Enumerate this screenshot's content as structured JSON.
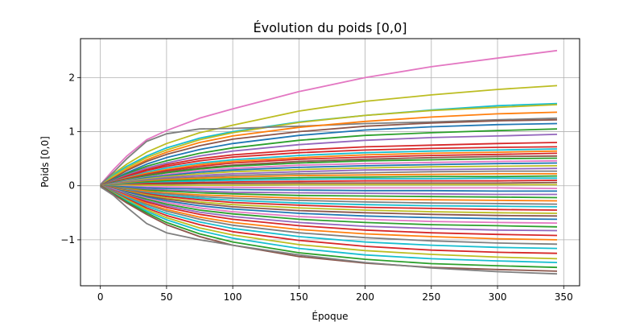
{
  "chart_data": {
    "type": "line",
    "title": "Évolution du poids [0,0]",
    "xlabel": "Époque",
    "ylabel": "Poids [0,0]",
    "xlim": [
      -15,
      362
    ],
    "ylim": [
      -1.85,
      2.72
    ],
    "x_ticks": [
      0,
      50,
      100,
      150,
      200,
      250,
      300,
      350
    ],
    "x_tick_labels": [
      "0",
      "50",
      "100",
      "150",
      "200",
      "250",
      "300",
      "350"
    ],
    "y_ticks": [
      -1,
      0,
      1,
      2
    ],
    "y_tick_labels": [
      "−1",
      "0",
      "1",
      "2"
    ],
    "grid": true,
    "legend": "none",
    "x": [
      0,
      10,
      20,
      35,
      50,
      75,
      100,
      150,
      200,
      250,
      300,
      345
    ],
    "series": [
      {
        "color": "#e377c2",
        "values": [
          0.02,
          0.3,
          0.55,
          0.85,
          1.02,
          1.25,
          1.42,
          1.74,
          2.0,
          2.2,
          2.36,
          2.5
        ]
      },
      {
        "color": "#bcbd22",
        "values": [
          0.01,
          0.22,
          0.4,
          0.62,
          0.78,
          0.98,
          1.12,
          1.38,
          1.56,
          1.68,
          1.78,
          1.85
        ]
      },
      {
        "color": "#17becf",
        "values": [
          0.0,
          0.2,
          0.36,
          0.55,
          0.7,
          0.88,
          1.0,
          1.18,
          1.3,
          1.4,
          1.48,
          1.52
        ]
      },
      {
        "color": "#bcbd22",
        "values": [
          0.0,
          0.18,
          0.33,
          0.52,
          0.66,
          0.85,
          0.98,
          1.17,
          1.3,
          1.39,
          1.45,
          1.5
        ]
      },
      {
        "color": "#7f7f7f",
        "values": [
          0.02,
          0.25,
          0.5,
          0.82,
          0.96,
          1.05,
          1.06,
          1.1,
          1.15,
          1.18,
          1.22,
          1.25
        ]
      },
      {
        "color": "#ff7f0e",
        "values": [
          0.0,
          0.15,
          0.3,
          0.48,
          0.62,
          0.8,
          0.92,
          1.08,
          1.19,
          1.27,
          1.33,
          1.36
        ]
      },
      {
        "color": "#8c564b",
        "values": [
          0.0,
          0.14,
          0.28,
          0.45,
          0.58,
          0.74,
          0.86,
          1.0,
          1.1,
          1.16,
          1.2,
          1.22
        ]
      },
      {
        "color": "#1f77b4",
        "values": [
          0.0,
          0.12,
          0.24,
          0.4,
          0.52,
          0.67,
          0.78,
          0.93,
          1.03,
          1.09,
          1.13,
          1.15
        ]
      },
      {
        "color": "#2ca02c",
        "values": [
          0.0,
          0.11,
          0.22,
          0.36,
          0.46,
          0.6,
          0.7,
          0.84,
          0.93,
          0.98,
          1.02,
          1.05
        ]
      },
      {
        "color": "#9467bd",
        "values": [
          0.0,
          0.1,
          0.2,
          0.33,
          0.42,
          0.55,
          0.64,
          0.76,
          0.84,
          0.89,
          0.92,
          0.95
        ]
      },
      {
        "color": "#d62728",
        "values": [
          0.0,
          0.09,
          0.18,
          0.3,
          0.39,
          0.5,
          0.57,
          0.66,
          0.72,
          0.75,
          0.78,
          0.8
        ]
      },
      {
        "color": "#d62728",
        "values": [
          0.0,
          0.08,
          0.16,
          0.28,
          0.36,
          0.46,
          0.53,
          0.61,
          0.66,
          0.69,
          0.71,
          0.72
        ]
      },
      {
        "color": "#17becf",
        "values": [
          0.0,
          0.08,
          0.15,
          0.25,
          0.33,
          0.42,
          0.48,
          0.56,
          0.61,
          0.64,
          0.66,
          0.68
        ]
      },
      {
        "color": "#ff7f0e",
        "values": [
          0.0,
          0.07,
          0.14,
          0.23,
          0.3,
          0.39,
          0.45,
          0.52,
          0.57,
          0.6,
          0.62,
          0.64
        ]
      },
      {
        "color": "#d62728",
        "values": [
          0.0,
          0.07,
          0.13,
          0.21,
          0.28,
          0.36,
          0.42,
          0.49,
          0.53,
          0.56,
          0.58,
          0.6
        ]
      },
      {
        "color": "#8c564b",
        "values": [
          0.0,
          0.06,
          0.12,
          0.2,
          0.26,
          0.33,
          0.38,
          0.45,
          0.49,
          0.52,
          0.54,
          0.55
        ]
      },
      {
        "color": "#2ca02c",
        "values": [
          0.0,
          0.06,
          0.11,
          0.18,
          0.24,
          0.31,
          0.36,
          0.42,
          0.46,
          0.48,
          0.5,
          0.51
        ]
      },
      {
        "color": "#e377c2",
        "values": [
          0.0,
          0.05,
          0.1,
          0.16,
          0.21,
          0.28,
          0.32,
          0.38,
          0.41,
          0.43,
          0.45,
          0.46
        ]
      },
      {
        "color": "#1f77b4",
        "values": [
          0.0,
          0.05,
          0.09,
          0.15,
          0.19,
          0.25,
          0.29,
          0.34,
          0.37,
          0.39,
          0.41,
          0.42
        ]
      },
      {
        "color": "#bcbd22",
        "values": [
          0.0,
          0.04,
          0.08,
          0.13,
          0.17,
          0.22,
          0.26,
          0.3,
          0.33,
          0.35,
          0.36,
          0.37
        ]
      },
      {
        "color": "#9467bd",
        "values": [
          0.0,
          0.04,
          0.07,
          0.11,
          0.15,
          0.19,
          0.22,
          0.26,
          0.29,
          0.3,
          0.31,
          0.32
        ]
      },
      {
        "color": "#7f7f7f",
        "values": [
          0.0,
          0.03,
          0.06,
          0.1,
          0.13,
          0.16,
          0.19,
          0.22,
          0.24,
          0.26,
          0.27,
          0.27
        ]
      },
      {
        "color": "#ff7f0e",
        "values": [
          0.0,
          0.03,
          0.05,
          0.08,
          0.11,
          0.14,
          0.16,
          0.19,
          0.2,
          0.21,
          0.22,
          0.22
        ]
      },
      {
        "color": "#2ca02c",
        "values": [
          0.0,
          0.02,
          0.04,
          0.07,
          0.09,
          0.11,
          0.13,
          0.15,
          0.16,
          0.17,
          0.17,
          0.18
        ]
      },
      {
        "color": "#17becf",
        "values": [
          0.0,
          0.02,
          0.03,
          0.05,
          0.07,
          0.09,
          0.1,
          0.12,
          0.13,
          0.13,
          0.14,
          0.14
        ]
      },
      {
        "color": "#d62728",
        "values": [
          0.0,
          0.01,
          0.02,
          0.04,
          0.05,
          0.06,
          0.07,
          0.08,
          0.09,
          0.09,
          0.09,
          0.1
        ]
      },
      {
        "color": "#8c564b",
        "values": [
          0.0,
          0.01,
          0.01,
          0.02,
          0.03,
          0.04,
          0.04,
          0.05,
          0.05,
          0.05,
          0.05,
          0.06
        ]
      },
      {
        "color": "#bcbd22",
        "values": [
          0.0,
          0.0,
          0.01,
          0.01,
          0.01,
          0.01,
          0.01,
          0.02,
          0.02,
          0.02,
          0.02,
          0.02
        ]
      },
      {
        "color": "#e377c2",
        "values": [
          0.0,
          -0.01,
          -0.01,
          -0.02,
          -0.02,
          -0.03,
          -0.03,
          -0.04,
          -0.04,
          -0.04,
          -0.04,
          -0.05
        ]
      },
      {
        "color": "#1f77b4",
        "values": [
          0.0,
          -0.01,
          -0.02,
          -0.04,
          -0.05,
          -0.06,
          -0.07,
          -0.08,
          -0.09,
          -0.09,
          -0.1,
          -0.1
        ]
      },
      {
        "color": "#9467bd",
        "values": [
          0.0,
          -0.02,
          -0.04,
          -0.06,
          -0.08,
          -0.1,
          -0.12,
          -0.13,
          -0.14,
          -0.15,
          -0.16,
          -0.16
        ]
      },
      {
        "color": "#2ca02c",
        "values": [
          0.0,
          -0.02,
          -0.05,
          -0.08,
          -0.1,
          -0.13,
          -0.15,
          -0.18,
          -0.19,
          -0.2,
          -0.21,
          -0.22
        ]
      },
      {
        "color": "#ff7f0e",
        "values": [
          0.0,
          -0.03,
          -0.06,
          -0.1,
          -0.13,
          -0.17,
          -0.19,
          -0.23,
          -0.25,
          -0.26,
          -0.27,
          -0.28
        ]
      },
      {
        "color": "#7f7f7f",
        "values": [
          0.0,
          -0.03,
          -0.07,
          -0.12,
          -0.15,
          -0.2,
          -0.23,
          -0.27,
          -0.3,
          -0.32,
          -0.33,
          -0.34
        ]
      },
      {
        "color": "#17becf",
        "values": [
          0.0,
          -0.04,
          -0.08,
          -0.14,
          -0.18,
          -0.23,
          -0.27,
          -0.32,
          -0.35,
          -0.37,
          -0.38,
          -0.39
        ]
      },
      {
        "color": "#d62728",
        "values": [
          0.0,
          -0.04,
          -0.09,
          -0.15,
          -0.2,
          -0.26,
          -0.31,
          -0.36,
          -0.4,
          -0.42,
          -0.44,
          -0.45
        ]
      },
      {
        "color": "#bcbd22",
        "values": [
          0.0,
          -0.05,
          -0.1,
          -0.17,
          -0.23,
          -0.3,
          -0.35,
          -0.41,
          -0.45,
          -0.48,
          -0.5,
          -0.51
        ]
      },
      {
        "color": "#8c564b",
        "values": [
          0.0,
          -0.06,
          -0.11,
          -0.19,
          -0.25,
          -0.33,
          -0.39,
          -0.46,
          -0.5,
          -0.53,
          -0.55,
          -0.56
        ]
      },
      {
        "color": "#1f77b4",
        "values": [
          0.0,
          -0.06,
          -0.12,
          -0.21,
          -0.28,
          -0.37,
          -0.43,
          -0.51,
          -0.56,
          -0.59,
          -0.61,
          -0.62
        ]
      },
      {
        "color": "#e377c2",
        "values": [
          0.0,
          -0.07,
          -0.14,
          -0.23,
          -0.31,
          -0.41,
          -0.48,
          -0.57,
          -0.62,
          -0.66,
          -0.68,
          -0.69
        ]
      },
      {
        "color": "#2ca02c",
        "values": [
          0.0,
          -0.08,
          -0.15,
          -0.25,
          -0.34,
          -0.45,
          -0.52,
          -0.62,
          -0.68,
          -0.72,
          -0.74,
          -0.76
        ]
      },
      {
        "color": "#9467bd",
        "values": [
          0.0,
          -0.08,
          -0.16,
          -0.28,
          -0.37,
          -0.49,
          -0.57,
          -0.68,
          -0.75,
          -0.79,
          -0.82,
          -0.83
        ]
      },
      {
        "color": "#d62728",
        "values": [
          0.0,
          -0.09,
          -0.18,
          -0.3,
          -0.4,
          -0.53,
          -0.62,
          -0.74,
          -0.82,
          -0.87,
          -0.9,
          -0.92
        ]
      },
      {
        "color": "#ff7f0e",
        "values": [
          0.0,
          -0.1,
          -0.19,
          -0.33,
          -0.44,
          -0.58,
          -0.68,
          -0.81,
          -0.89,
          -0.94,
          -0.98,
          -1.0
        ]
      },
      {
        "color": "#7f7f7f",
        "values": [
          0.0,
          -0.1,
          -0.21,
          -0.35,
          -0.47,
          -0.62,
          -0.73,
          -0.87,
          -0.96,
          -1.02,
          -1.06,
          -1.08
        ]
      },
      {
        "color": "#17becf",
        "values": [
          0.0,
          -0.11,
          -0.22,
          -0.38,
          -0.51,
          -0.67,
          -0.79,
          -0.94,
          -1.04,
          -1.1,
          -1.14,
          -1.16
        ]
      },
      {
        "color": "#d62728",
        "values": [
          0.0,
          -0.12,
          -0.24,
          -0.41,
          -0.55,
          -0.72,
          -0.85,
          -1.01,
          -1.12,
          -1.19,
          -1.23,
          -1.25
        ]
      },
      {
        "color": "#bcbd22",
        "values": [
          0.0,
          -0.13,
          -0.26,
          -0.44,
          -0.59,
          -0.78,
          -0.91,
          -1.09,
          -1.2,
          -1.27,
          -1.32,
          -1.35
        ]
      },
      {
        "color": "#17becf",
        "values": [
          0.0,
          -0.14,
          -0.28,
          -0.47,
          -0.63,
          -0.83,
          -0.97,
          -1.16,
          -1.28,
          -1.35,
          -1.39,
          -1.42
        ]
      },
      {
        "color": "#2ca02c",
        "values": [
          0.0,
          -0.15,
          -0.3,
          -0.5,
          -0.68,
          -0.89,
          -1.04,
          -1.24,
          -1.36,
          -1.44,
          -1.48,
          -1.51
        ]
      },
      {
        "color": "#8c564b",
        "values": [
          0.0,
          -0.16,
          -0.32,
          -0.53,
          -0.72,
          -0.94,
          -1.1,
          -1.31,
          -1.43,
          -1.51,
          -1.55,
          -1.58
        ]
      },
      {
        "color": "#7f7f7f",
        "values": [
          -0.02,
          -0.18,
          -0.4,
          -0.7,
          -0.87,
          -1.0,
          -1.1,
          -1.28,
          -1.42,
          -1.52,
          -1.59,
          -1.63
        ]
      }
    ]
  }
}
